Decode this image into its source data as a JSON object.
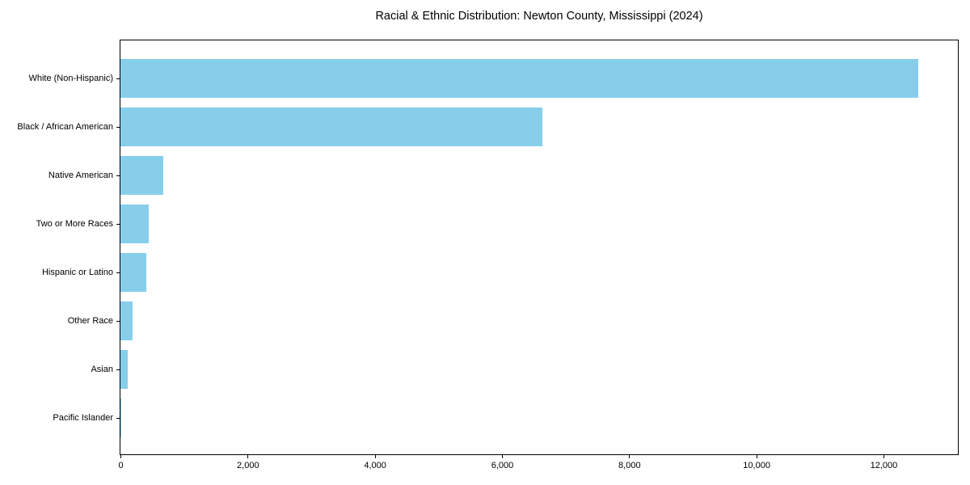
{
  "chart_data": {
    "type": "bar",
    "orientation": "horizontal",
    "title": "Racial & Ethnic Distribution: Newton County, Mississippi (2024)",
    "categories": [
      "White (Non-Hispanic)",
      "Black / African American",
      "Native American",
      "Two or More Races",
      "Hispanic or Latino",
      "Other Race",
      "Asian",
      "Pacific Islander"
    ],
    "values": [
      12547,
      6636,
      674,
      445,
      407,
      191,
      110,
      6
    ],
    "xlabel": "",
    "ylabel": "",
    "xlim": [
      0,
      13170
    ],
    "x_ticks": [
      0,
      2000,
      4000,
      6000,
      8000,
      10000,
      12000
    ],
    "x_tick_labels": [
      "0",
      "2,000",
      "4,000",
      "6,000",
      "8,000",
      "10,000",
      "12,000"
    ],
    "bar_color": "#87CEEB",
    "axis_color": "#000000",
    "background_color": "#FFFFFF",
    "grid": false
  }
}
